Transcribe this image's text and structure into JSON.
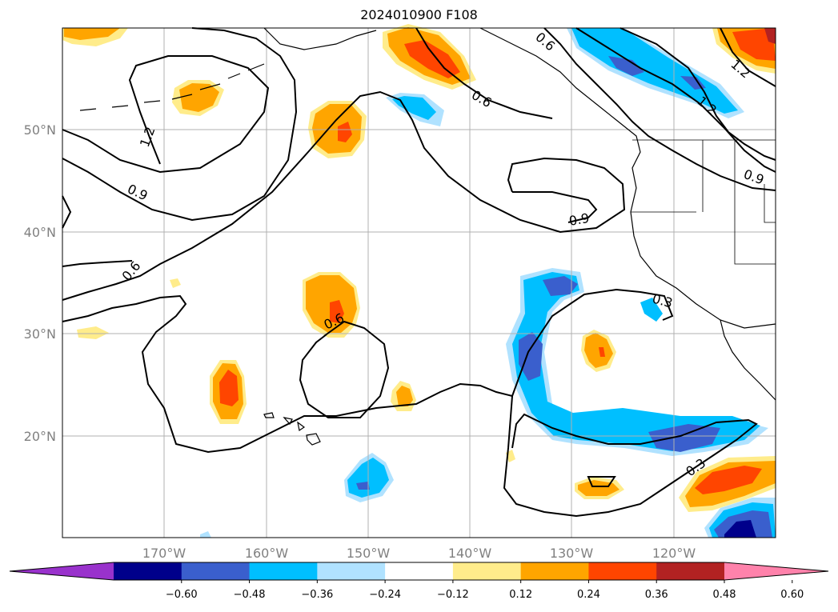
{
  "title": "2024010900 F108",
  "lat_labels": [
    "50°N",
    "40°N",
    "30°N",
    "20°N"
  ],
  "lon_labels": [
    "170°W",
    "160°W",
    "150°W",
    "140°W",
    "130°W",
    "120°W"
  ],
  "contour_labels": [
    "1.2",
    "0.9",
    "0.6",
    "0.6",
    "0.6",
    "0.9",
    "0.3",
    "0.3",
    "0.9",
    "1.2",
    "0.6"
  ],
  "colorbar": {
    "ticks": [
      "−0.60",
      "−0.48",
      "−0.36",
      "−0.24",
      "−0.12",
      "0.12",
      "0.24",
      "0.36",
      "0.48",
      "0.60"
    ],
    "colors": [
      "#9932cc",
      "#00008b",
      "#3a5fcd",
      "#00bfff",
      "#b0e2ff",
      "#ffffff",
      "#ffec8b",
      "#ffa500",
      "#ff4500",
      "#b22222",
      "#ff82ab"
    ]
  },
  "colors": {
    "fill_high": "#ffa500",
    "fill_higher": "#ff4500",
    "fill_low": "#00bfff",
    "fill_lower": "#3a5fcd",
    "fill_lowest": "#00008b",
    "grid": "#b0b0b0",
    "text": "#808080"
  }
}
